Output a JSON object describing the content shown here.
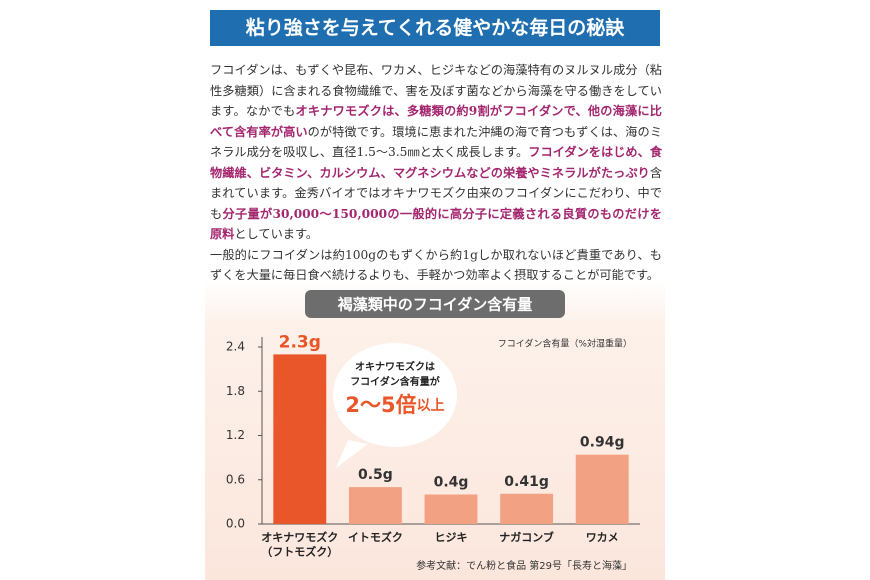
{
  "header": {
    "title": "粘り強さを与えてくれる健やかな毎日の秘訣"
  },
  "body": [
    [
      {
        "text": "フコイダンは、もずくや昆布、ワカメ、ヒジキなどの海藻特有のヌルヌル成分（粘性多糖類）に含まれる食物繊維で、害を及ぼす菌などから海藻を守る働きをしています。なかでも"
      },
      {
        "text": "オキナワモズクは、多糖類の約9割がフコイダンで、他の海藻に比べて含有率が高い",
        "emphasis": true
      },
      {
        "text": "のが特徴です。環境に恵まれた沖縄の海で育つもずくは、海のミネラル成分を吸収し、直径1.5～3.5㎜と太く成長します。"
      },
      {
        "text": "フコイダンをはじめ、食物繊維、ビタミン、カルシウム、マグネシウムなどの栄養やミネラルがたっぷり",
        "emphasis": true
      },
      {
        "text": "含まれています。金秀バイオではオキナワモズク由来のフコイダンにこだわり、中でも"
      },
      {
        "text": "分子量が30,000～150,000の一般的に高分子に定義される良質のものだけを原料",
        "emphasis": true
      },
      {
        "text": "としています。"
      }
    ],
    [
      {
        "text": "一般的にフコイダンは約100gのもずくから約1gしか取れないほど貴重であり、もずくを大量に毎日食べ続けるよりも、手軽かつ効率よく摂取することが可能です。"
      }
    ]
  ],
  "chart_data": {
    "type": "bar",
    "title": "褐藻類中のフコイダン含有量",
    "y_label": "フコイダン含有量（%対湿重量）",
    "categories": [
      "オキナワモズク\n（フトモズク）",
      "イトモズク",
      "ヒジキ",
      "ナガコンブ",
      "ワカメ"
    ],
    "values": [
      2.3,
      0.5,
      0.4,
      0.41,
      0.94
    ],
    "value_labels": [
      "2.3g",
      "0.5g",
      "0.4g",
      "0.41g",
      "0.94g"
    ],
    "colors": [
      "#e8562a",
      "#f2a283",
      "#f2a283",
      "#f2a283",
      "#f2a283"
    ],
    "ylim": [
      0,
      2.4
    ],
    "yticks": [
      {
        "value": 0,
        "label": "0.0"
      },
      0.6,
      1.2,
      1.8,
      2.4
    ],
    "annotation": {
      "lines": [
        "オキナワモズクは",
        "フコイダン含有量が"
      ],
      "highlight": "2～5倍",
      "suffix": "以上"
    },
    "source": "参考文献：でん粉と食品 第29号「長寿と海藻」"
  }
}
